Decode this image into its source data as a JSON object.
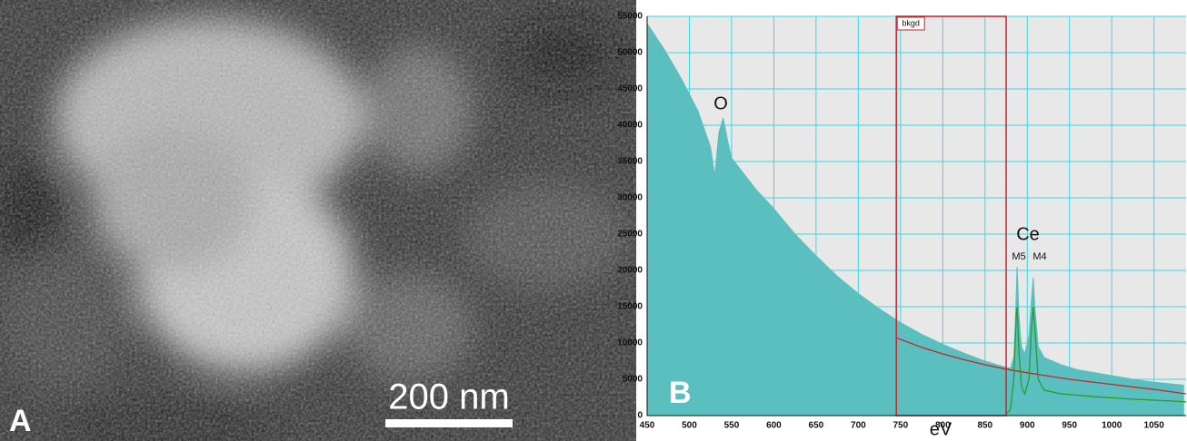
{
  "panel_a": {
    "label": "A",
    "scale_bar": "200 nm"
  },
  "chart_data": {
    "type": "area",
    "panel_label": "B",
    "xlabel": "eV",
    "xlim": [
      450,
      1088
    ],
    "ylim": [
      0,
      55000
    ],
    "xticks": [
      450,
      500,
      550,
      600,
      650,
      700,
      750,
      800,
      850,
      900,
      950,
      1000,
      1050
    ],
    "yticks": [
      0,
      5000,
      10000,
      15000,
      20000,
      25000,
      30000,
      35000,
      40000,
      45000,
      50000,
      55000
    ],
    "grid": true,
    "grid_color": "#3ad8e6",
    "background": "#e8e8e8",
    "series": [
      {
        "color": "#5bbfbf",
        "x": [
          450,
          470,
          490,
          510,
          525,
          530,
          535,
          540,
          545,
          550,
          560,
          580,
          600,
          625,
          650,
          675,
          700,
          725,
          750,
          775,
          800,
          825,
          850,
          870,
          880,
          884,
          886,
          888,
          890,
          893,
          897,
          902,
          905,
          907,
          909,
          913,
          920,
          940,
          960,
          980,
          1000,
          1025,
          1050,
          1085
        ],
        "values": [
          54000,
          50500,
          46500,
          42000,
          37000,
          33000,
          39000,
          41000,
          38000,
          35500,
          34000,
          31000,
          28500,
          25000,
          22000,
          19200,
          16800,
          14700,
          12800,
          11200,
          9800,
          8600,
          7500,
          6800,
          6500,
          8000,
          13000,
          20500,
          14000,
          9500,
          8500,
          11000,
          16000,
          19000,
          15000,
          9500,
          8000,
          7000,
          6300,
          5900,
          5500,
          5000,
          4600,
          4200
        ]
      },
      {
        "color": "#c0262c",
        "x": [
          745,
          775,
          800,
          825,
          850,
          875,
          900,
          950,
          1000,
          1050,
          1088
        ],
        "values": [
          10700,
          9400,
          8500,
          7700,
          7000,
          6400,
          5900,
          5000,
          4300,
          3600,
          3000
        ]
      },
      {
        "color": "#2a9a2a",
        "x": [
          875,
          880,
          884,
          887,
          888,
          890,
          893,
          897,
          902,
          905,
          907,
          909,
          913,
          920,
          940,
          980,
          1020,
          1088
        ],
        "values": [
          300,
          800,
          5000,
          14000,
          15000,
          9000,
          4000,
          3000,
          5000,
          12000,
          15000,
          12000,
          5000,
          3500,
          3000,
          2600,
          2300,
          1900
        ]
      }
    ],
    "background_window": {
      "label": "bkgd",
      "x": [
        745,
        875
      ],
      "color": "#c0262c"
    },
    "annotations": [
      "O",
      "Ce",
      "M5",
      "M4"
    ]
  }
}
